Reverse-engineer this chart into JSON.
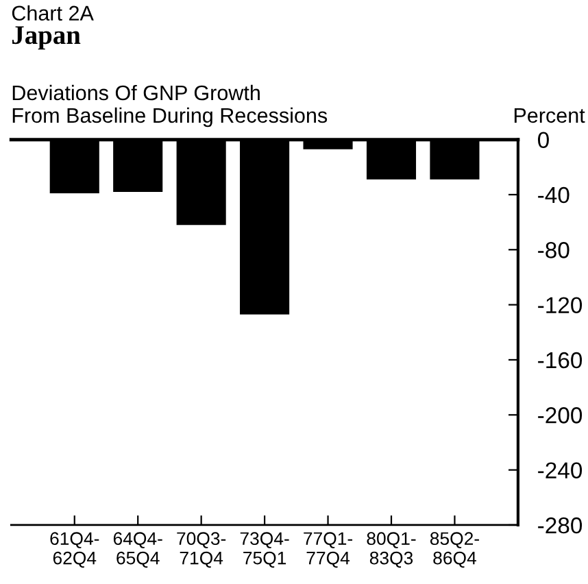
{
  "chart_data": {
    "type": "bar",
    "title": "Japan",
    "subtitle": "Deviations Of GNP Growth\nFrom Baseline During Recessions",
    "ylabel": "Percent",
    "annotations": [
      "Chart 2A"
    ],
    "categories": [
      "61Q4-\n62Q4",
      "64Q4-\n65Q4",
      "70Q3-\n71Q4",
      "73Q4-\n75Q1",
      "77Q1-\n77Q4",
      "80Q1-\n83Q3",
      "85Q2-\n86Q4"
    ],
    "values": [
      -39,
      -38,
      -62,
      -127,
      -7,
      -29,
      -29
    ],
    "color": "#000000",
    "ylim": [
      -280,
      0
    ],
    "yticks": [
      0,
      -40,
      -80,
      -120,
      -160,
      -200,
      -240,
      -280
    ],
    "grid": false,
    "legend": false
  }
}
